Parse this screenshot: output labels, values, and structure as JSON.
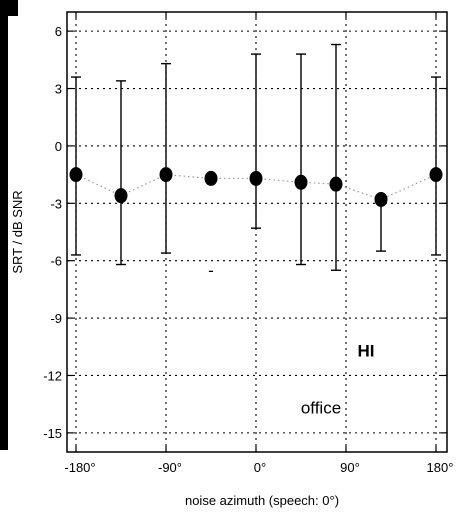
{
  "chart_data": {
    "type": "scatter",
    "title": "",
    "xlabel": "noise azimuth (speech: 0°)",
    "ylabel": "SRT / dB SNR",
    "xlim": [
      -180,
      180
    ],
    "ylim": [
      -16,
      7
    ],
    "xticks": [
      -180,
      -90,
      0,
      90,
      180
    ],
    "xtick_labels": [
      "-180°",
      "-90°",
      "0°",
      "90°",
      "180°"
    ],
    "yticks": [
      6,
      3,
      0,
      -3,
      -6,
      -9,
      -12,
      -15
    ],
    "ytick_labels": [
      "6",
      "3",
      "0",
      "-3",
      "-6",
      "-9",
      "-12",
      "-15"
    ],
    "grid": true,
    "series": [
      {
        "x": [
          -180,
          -135,
          -90,
          -45,
          0,
          45,
          80,
          125,
          180
        ],
        "y": [
          -1.5,
          -2.6,
          -1.5,
          -1.7,
          -1.7,
          -1.9,
          -2.0,
          -2.8,
          -1.5
        ],
        "err_low": [
          -5.7,
          -6.2,
          -5.6,
          null,
          -4.3,
          -6.2,
          -6.5,
          -5.5,
          -5.7
        ],
        "err_high": [
          3.6,
          3.4,
          4.3,
          null,
          4.8,
          4.8,
          5.3,
          null,
          3.6
        ]
      }
    ],
    "annotations": [
      {
        "text": "HI",
        "x": 110,
        "y": -11,
        "style": "bold"
      },
      {
        "text": "office",
        "x": 65,
        "y": -14,
        "style": "normal"
      },
      {
        "text": "-",
        "x": -45,
        "y": -6.8,
        "style": "normal"
      }
    ],
    "colors": {
      "marker": "#000000",
      "line": "#9a9a9a",
      "grid": "#000000"
    }
  }
}
